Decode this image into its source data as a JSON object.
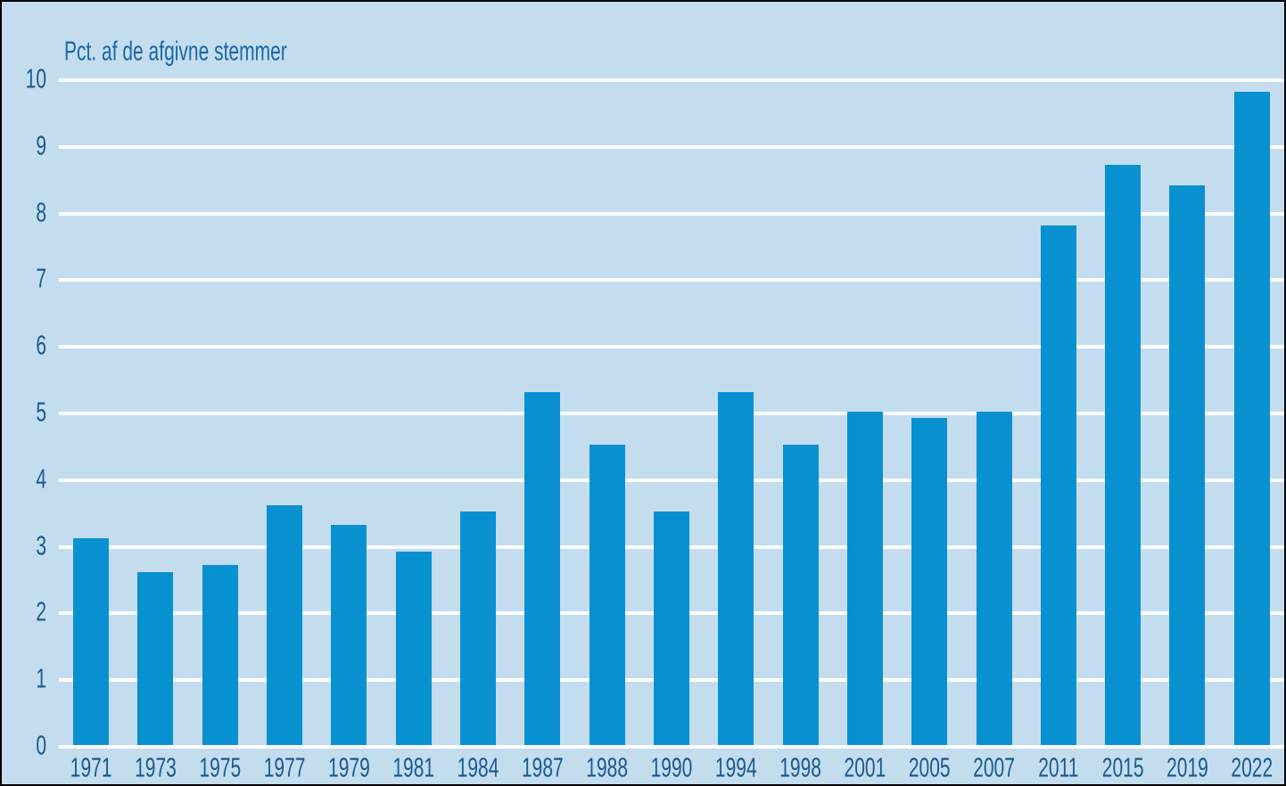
{
  "chart_data": {
    "type": "bar",
    "title": "Pct. af de afgivne stemmer",
    "categories": [
      "1971",
      "1973",
      "1975",
      "1977",
      "1979",
      "1981",
      "1984",
      "1987",
      "1988",
      "1990",
      "1994",
      "1998",
      "2001",
      "2005",
      "2007",
      "2011",
      "2015",
      "2019",
      "2022"
    ],
    "values": [
      3.1,
      2.6,
      2.7,
      3.6,
      3.3,
      2.9,
      3.5,
      5.3,
      4.5,
      3.5,
      5.3,
      4.5,
      5.0,
      4.9,
      5.0,
      7.8,
      8.7,
      8.4,
      9.8
    ],
    "xlabel": "",
    "ylabel": "Pct. af de afgivne stemmer",
    "ylim": [
      0,
      10
    ],
    "yticks": [
      0,
      1,
      2,
      3,
      4,
      5,
      6,
      7,
      8,
      9,
      10
    ],
    "grid": "horizontal",
    "legend": "none",
    "colors": {
      "bar": "#0891d1",
      "background": "#c3ddef",
      "gridline": "#ffffff",
      "label_text": "#1c5a8f",
      "title_text": "#1a68a6"
    }
  }
}
